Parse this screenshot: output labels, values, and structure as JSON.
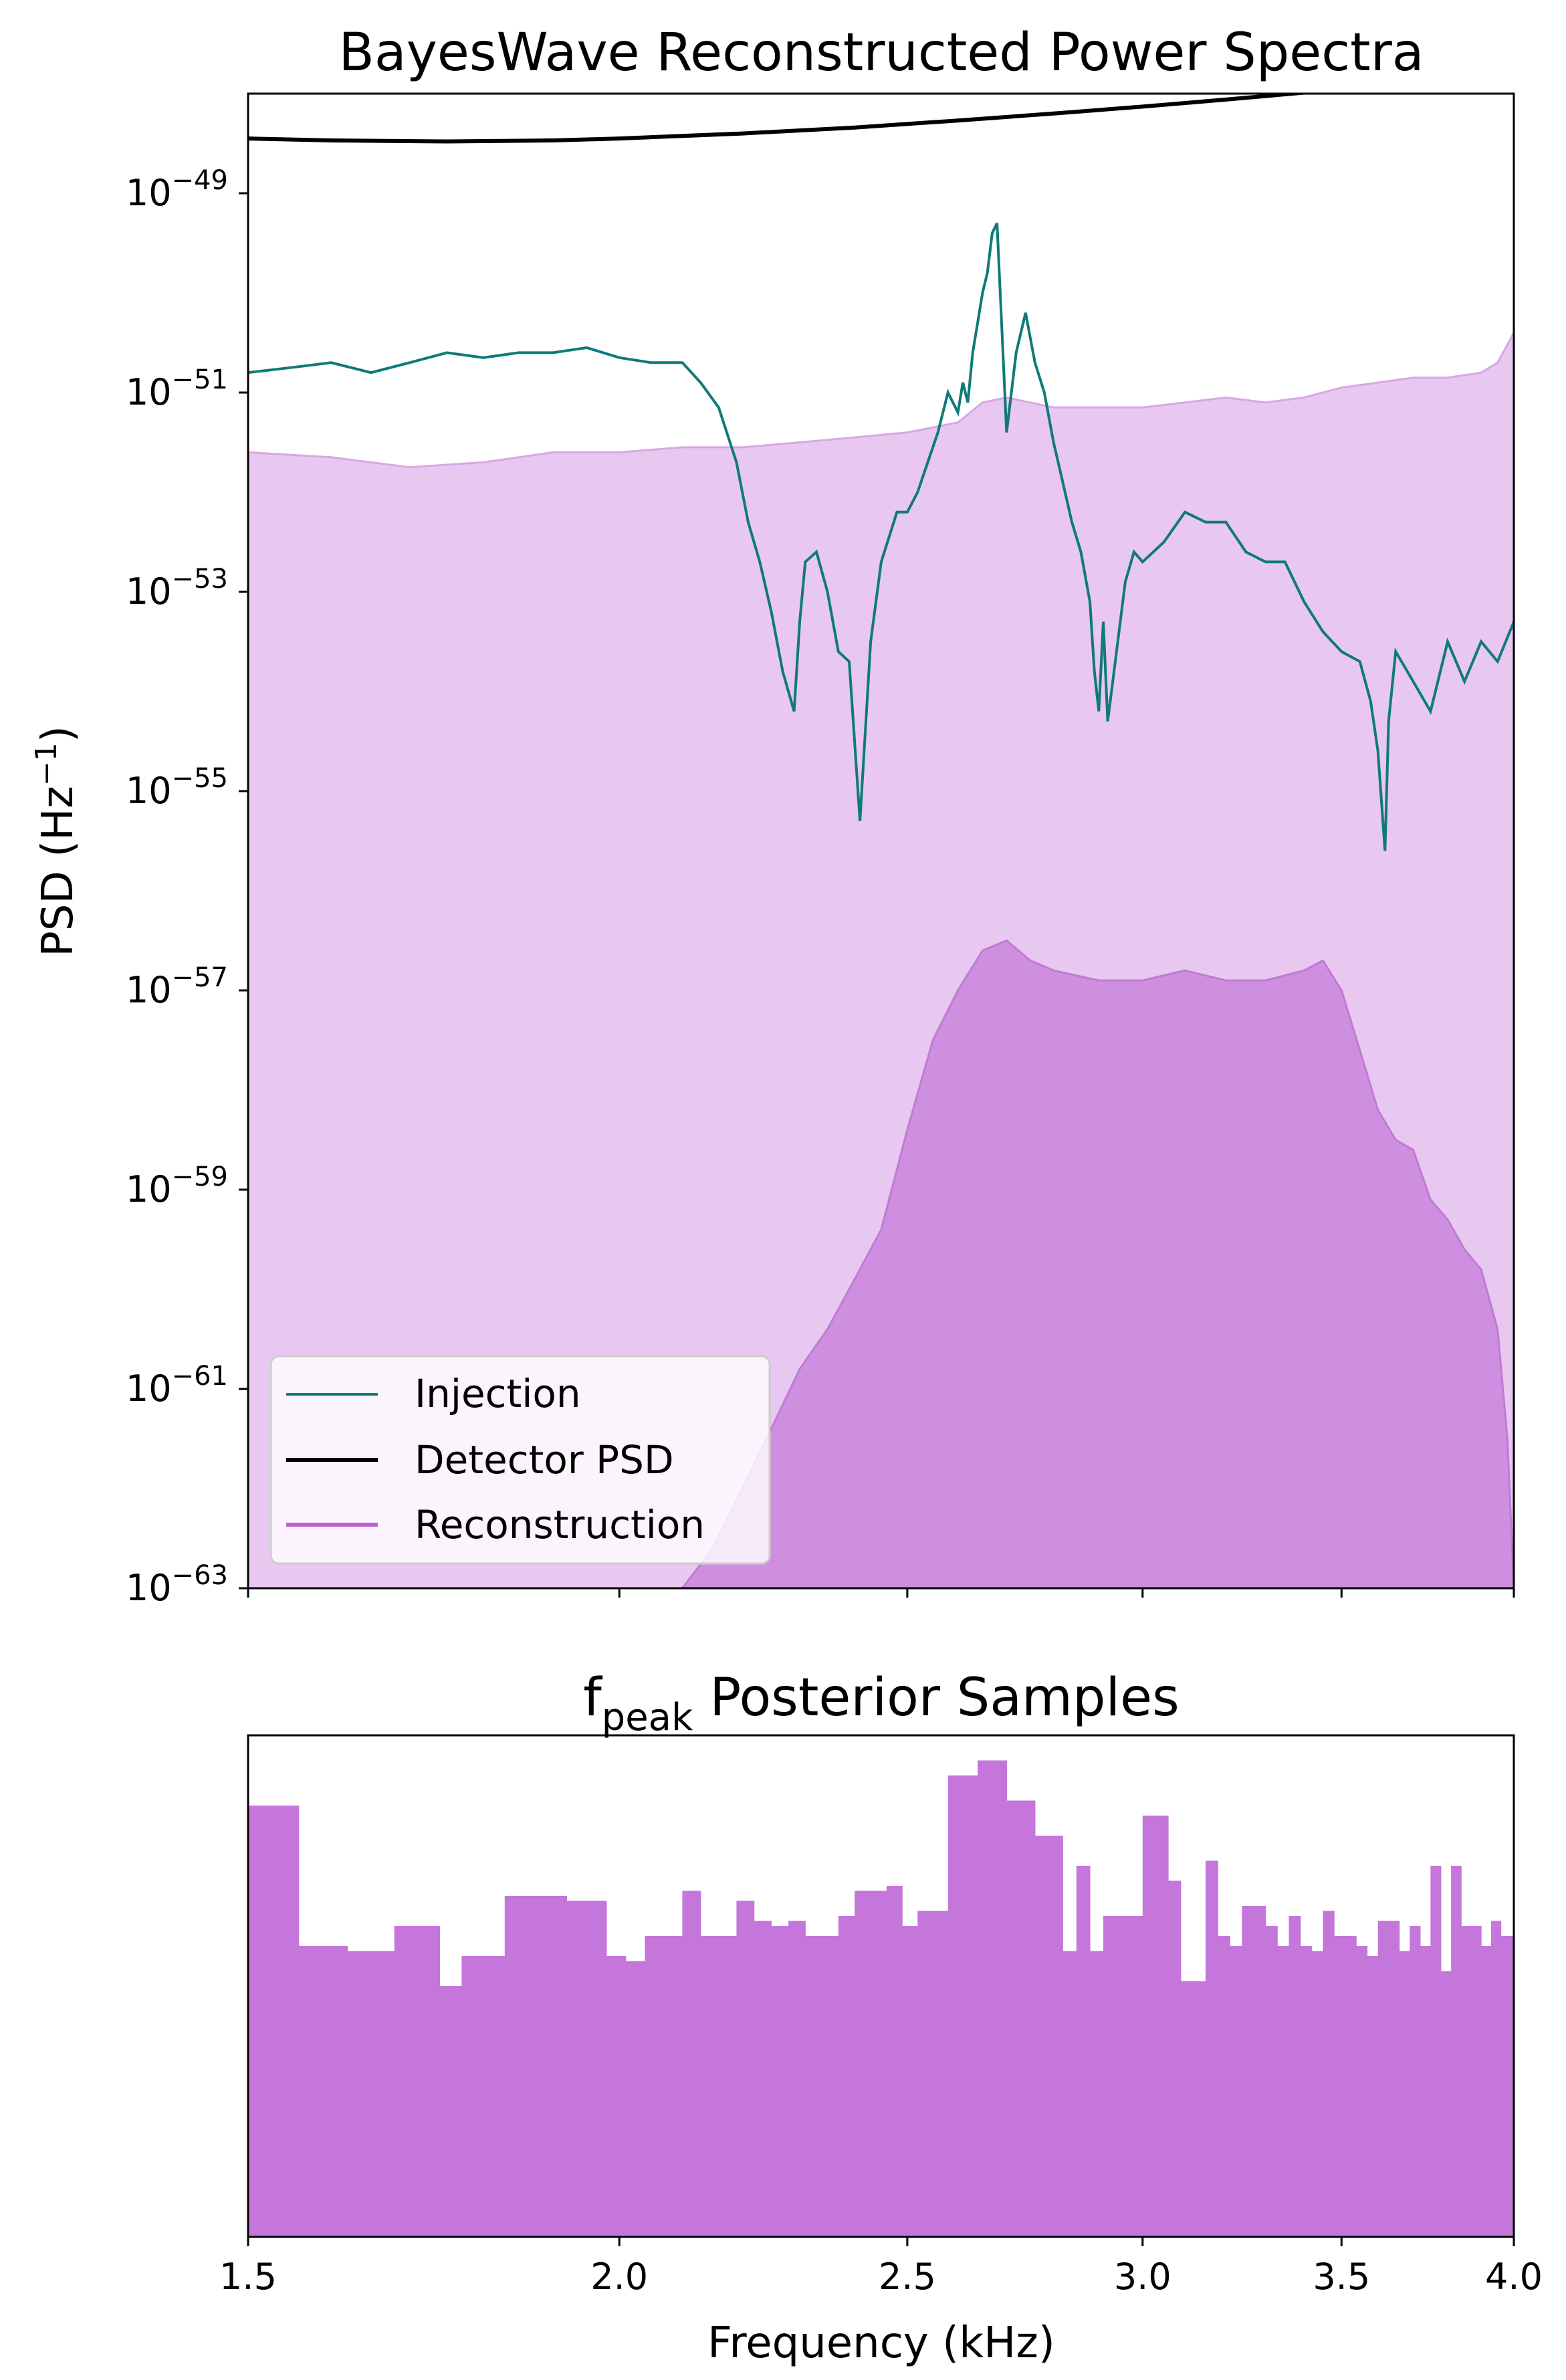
{
  "chart_data": [
    {
      "type": "area",
      "title": "BayesWave Reconstructed Power Spectra",
      "ylabel": "PSD (Hz",
      "ylabel_sup": "−1",
      "ylabel_end": ")",
      "yscale": "log",
      "xscale": "log",
      "xlim_khz": [
        1.5,
        4.0
      ],
      "ylim_exp": [
        -63,
        -48
      ],
      "ytick_base": "10",
      "yticks_exp": [
        "−63",
        "−61",
        "−59",
        "−57",
        "−55",
        "−53",
        "−51",
        "−49"
      ],
      "ytick_values_exp": [
        -63,
        -61,
        -59,
        -57,
        -55,
        -53,
        -51,
        -49
      ],
      "xticks_khz": [
        1.5,
        2.0,
        2.5,
        3.0,
        3.5,
        4.0
      ],
      "legend": {
        "placement": "lower-left",
        "entries": [
          "Injection",
          "Detector PSD",
          "Reconstruction"
        ]
      },
      "colors": {
        "injection": "#0f7a7a",
        "detector_psd": "#000000",
        "reconstruction": "#bf5fd6",
        "reconstruction_90": "#e8c8f0",
        "reconstruction_50": "#cf8fe0"
      },
      "series": [
        {
          "name": "Detector PSD",
          "x_khz": [
            1.5,
            1.6,
            1.75,
            1.9,
            2.0,
            2.2,
            2.4,
            2.6,
            2.8,
            3.0,
            3.2,
            3.4,
            3.5
          ],
          "log10_psd": [
            -48.45,
            -48.47,
            -48.48,
            -48.47,
            -48.45,
            -48.4,
            -48.34,
            -48.27,
            -48.2,
            -48.13,
            -48.06,
            -47.99,
            -47.95
          ]
        },
        {
          "name": "Injection",
          "x_khz": [
            1.5,
            1.55,
            1.6,
            1.65,
            1.7,
            1.75,
            1.8,
            1.85,
            1.9,
            1.95,
            2.0,
            2.05,
            2.1,
            2.13,
            2.16,
            2.19,
            2.21,
            2.23,
            2.25,
            2.27,
            2.29,
            2.3,
            2.31,
            2.33,
            2.35,
            2.37,
            2.39,
            2.41,
            2.43,
            2.45,
            2.48,
            2.5,
            2.52,
            2.54,
            2.56,
            2.58,
            2.6,
            2.61,
            2.62,
            2.63,
            2.64,
            2.65,
            2.66,
            2.67,
            2.68,
            2.7,
            2.72,
            2.74,
            2.76,
            2.78,
            2.8,
            2.82,
            2.84,
            2.86,
            2.88,
            2.89,
            2.9,
            2.91,
            2.92,
            2.94,
            2.96,
            2.98,
            3.0,
            3.05,
            3.1,
            3.15,
            3.2,
            3.25,
            3.3,
            3.35,
            3.4,
            3.45,
            3.5,
            3.55,
            3.58,
            3.6,
            3.62,
            3.63,
            3.65,
            3.7,
            3.75,
            3.8,
            3.85,
            3.9,
            3.95,
            4.0
          ],
          "log10_psd": [
            -50.8,
            -50.75,
            -50.7,
            -50.8,
            -50.7,
            -50.6,
            -50.65,
            -50.6,
            -50.6,
            -50.55,
            -50.65,
            -50.7,
            -50.7,
            -50.9,
            -51.15,
            -51.7,
            -52.3,
            -52.7,
            -53.2,
            -53.8,
            -54.2,
            -53.3,
            -52.7,
            -52.6,
            -53.0,
            -53.6,
            -53.7,
            -55.3,
            -53.5,
            -52.7,
            -52.2,
            -52.2,
            -52.0,
            -51.7,
            -51.4,
            -51.0,
            -51.2,
            -50.9,
            -51.1,
            -50.6,
            -50.3,
            -50.0,
            -49.8,
            -49.4,
            -49.3,
            -51.4,
            -50.6,
            -50.2,
            -50.7,
            -51.0,
            -51.5,
            -51.9,
            -52.3,
            -52.6,
            -53.1,
            -53.8,
            -54.2,
            -53.3,
            -54.3,
            -53.6,
            -52.9,
            -52.6,
            -52.7,
            -52.5,
            -52.2,
            -52.3,
            -52.3,
            -52.6,
            -52.7,
            -52.7,
            -53.1,
            -53.4,
            -53.6,
            -53.7,
            -54.1,
            -54.6,
            -55.6,
            -54.3,
            -53.6,
            -53.9,
            -54.2,
            -53.5,
            -53.9,
            -53.5,
            -53.7,
            -53.3
          ]
        },
        {
          "name": "Reconstruction",
          "band": "90% credible (upper)",
          "x_khz": [
            1.5,
            1.6,
            1.7,
            1.8,
            1.9,
            2.0,
            2.1,
            2.2,
            2.3,
            2.4,
            2.5,
            2.55,
            2.6,
            2.65,
            2.7,
            2.8,
            2.9,
            3.0,
            3.1,
            3.2,
            3.3,
            3.4,
            3.5,
            3.6,
            3.7,
            3.8,
            3.9,
            3.95,
            4.0
          ],
          "log10_psd": [
            -51.6,
            -51.65,
            -51.75,
            -51.7,
            -51.6,
            -51.6,
            -51.55,
            -51.55,
            -51.5,
            -51.45,
            -51.4,
            -51.35,
            -51.3,
            -51.1,
            -51.05,
            -51.15,
            -51.15,
            -51.15,
            -51.1,
            -51.05,
            -51.1,
            -51.05,
            -50.95,
            -50.9,
            -50.85,
            -50.85,
            -50.8,
            -50.7,
            -50.4
          ]
        },
        {
          "name": "Reconstruction",
          "band": "50% credible (upper)",
          "x_khz": [
            2.1,
            2.15,
            2.2,
            2.25,
            2.3,
            2.35,
            2.4,
            2.45,
            2.5,
            2.55,
            2.6,
            2.65,
            2.7,
            2.75,
            2.8,
            2.9,
            3.0,
            3.1,
            3.2,
            3.3,
            3.4,
            3.45,
            3.5,
            3.55,
            3.6,
            3.65,
            3.7,
            3.75,
            3.8,
            3.85,
            3.9,
            3.95,
            3.98,
            4.0
          ],
          "log10_psd": [
            -63.0,
            -62.6,
            -62.0,
            -61.4,
            -60.8,
            -60.4,
            -59.9,
            -59.4,
            -58.4,
            -57.5,
            -57.0,
            -56.6,
            -56.5,
            -56.7,
            -56.8,
            -56.9,
            -56.9,
            -56.8,
            -56.9,
            -56.9,
            -56.8,
            -56.7,
            -57.0,
            -57.6,
            -58.2,
            -58.5,
            -58.6,
            -59.1,
            -59.3,
            -59.6,
            -59.8,
            -60.4,
            -61.5,
            -63.0
          ]
        }
      ]
    },
    {
      "type": "bar",
      "title": "f",
      "title_sub": "peak",
      "title_rest": " Posterior Samples",
      "xlabel": "Frequency (kHz)",
      "xscale": "log",
      "xlim_khz": [
        1.5,
        4.0
      ],
      "xticks": [
        "1.5",
        "2.0",
        "2.5",
        "3.0",
        "3.5",
        "4.0"
      ],
      "xtick_values_khz": [
        1.5,
        2.0,
        2.5,
        3.0,
        3.5,
        4.0
      ],
      "ylim": [
        0,
        1.0
      ],
      "color": "#c576db",
      "bin_edges_khz": [
        1.5,
        1.53,
        1.56,
        1.59,
        1.62,
        1.65,
        1.68,
        1.71,
        1.74,
        1.77,
        1.8,
        1.83,
        1.86,
        1.89,
        1.92,
        1.95,
        1.98,
        2.01,
        2.04,
        2.07,
        2.1,
        2.13,
        2.16,
        2.19,
        2.22,
        2.25,
        2.28,
        2.31,
        2.34,
        2.37,
        2.4,
        2.43,
        2.46,
        2.49,
        2.52,
        2.55,
        2.58,
        2.61,
        2.64,
        2.67,
        2.7,
        2.73,
        2.76,
        2.79,
        2.82,
        2.85,
        2.88,
        2.91,
        2.94,
        2.97,
        3.0,
        3.03,
        3.06,
        3.09,
        3.12,
        3.15,
        3.18,
        3.21,
        3.24,
        3.27,
        3.3,
        3.33,
        3.36,
        3.39,
        3.42,
        3.45,
        3.48,
        3.51,
        3.54,
        3.57,
        3.6,
        3.63,
        3.66,
        3.69,
        3.72,
        3.75,
        3.78,
        3.81,
        3.84,
        3.87,
        3.9,
        3.93,
        3.96,
        4.0
      ],
      "values": [
        0.86,
        0.86,
        0.58,
        0.58,
        0.57,
        0.57,
        0.62,
        0.62,
        0.5,
        0.56,
        0.56,
        0.68,
        0.68,
        0.68,
        0.67,
        0.67,
        0.56,
        0.55,
        0.6,
        0.6,
        0.69,
        0.6,
        0.6,
        0.67,
        0.63,
        0.62,
        0.63,
        0.6,
        0.6,
        0.64,
        0.69,
        0.69,
        0.7,
        0.62,
        0.65,
        0.65,
        0.92,
        0.92,
        0.95,
        0.95,
        0.87,
        0.87,
        0.8,
        0.8,
        0.57,
        0.74,
        0.57,
        0.64,
        0.64,
        0.64,
        0.84,
        0.84,
        0.71,
        0.51,
        0.51,
        0.75,
        0.6,
        0.58,
        0.66,
        0.66,
        0.62,
        0.58,
        0.64,
        0.58,
        0.57,
        0.65,
        0.6,
        0.6,
        0.58,
        0.56,
        0.63,
        0.63,
        0.57,
        0.62,
        0.58,
        0.74,
        0.53,
        0.74,
        0.62,
        0.62,
        0.58,
        0.63,
        0.6
      ]
    }
  ]
}
